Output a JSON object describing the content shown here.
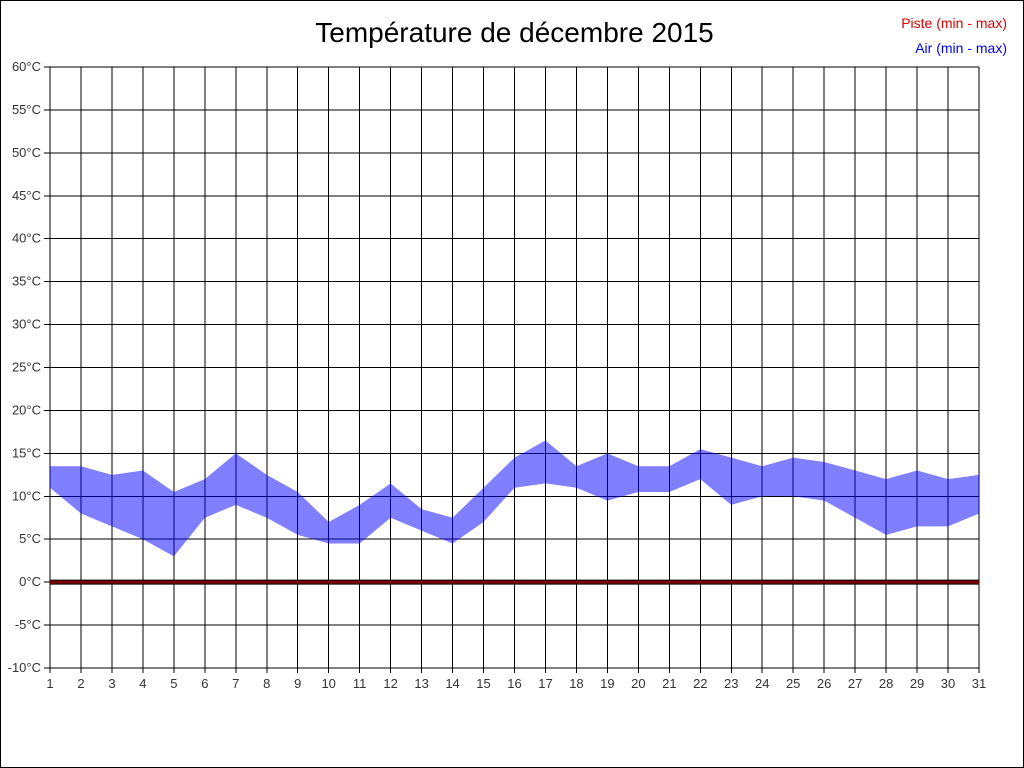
{
  "title": "Température de décembre 2015",
  "legend": {
    "piste_label": "Piste (min - max)",
    "air_label": "Air (min - max)",
    "piste_color": "#dd0000",
    "air_color": "#0000ee"
  },
  "colors": {
    "grid": "#000000",
    "tick_label": "#333333",
    "air_band_fill": "#0000ff",
    "air_band_opacity": 0.5,
    "piste_line": "#7c0000",
    "piste_line_edge": "#000000"
  },
  "chart_data": {
    "type": "area",
    "title": "Température de décembre 2015",
    "x": [
      1,
      2,
      3,
      4,
      5,
      6,
      7,
      8,
      9,
      10,
      11,
      12,
      13,
      14,
      15,
      16,
      17,
      18,
      19,
      20,
      21,
      22,
      23,
      24,
      25,
      26,
      27,
      28,
      29,
      30,
      31
    ],
    "ylim": [
      -10,
      60
    ],
    "ytick_step": 5,
    "yticks": [
      "60°C",
      "55°C",
      "50°C",
      "45°C",
      "40°C",
      "35°C",
      "30°C",
      "25°C",
      "20°C",
      "15°C",
      "10°C",
      "5°C",
      "0°C",
      "-5°C",
      "-10°C"
    ],
    "grid": true,
    "legend_position": "top-right",
    "series": [
      {
        "name": "Piste (min - max)",
        "color": "#7c0000",
        "min": [
          0,
          0,
          0,
          0,
          0,
          0,
          0,
          0,
          0,
          0,
          0,
          0,
          0,
          0,
          0,
          0,
          0,
          0,
          0,
          0,
          0,
          0,
          0,
          0,
          0,
          0,
          0,
          0,
          0,
          0,
          0
        ],
        "max": [
          0,
          0,
          0,
          0,
          0,
          0,
          0,
          0,
          0,
          0,
          0,
          0,
          0,
          0,
          0,
          0,
          0,
          0,
          0,
          0,
          0,
          0,
          0,
          0,
          0,
          0,
          0,
          0,
          0,
          0,
          0
        ]
      },
      {
        "name": "Air (min - max)",
        "color": "#0000ff",
        "opacity": 0.5,
        "min": [
          11,
          8,
          6.5,
          5,
          3,
          7.5,
          9,
          7.5,
          5.5,
          4.5,
          4.5,
          7.5,
          6,
          4.5,
          7,
          11,
          11.5,
          11,
          9.5,
          10.5,
          10.5,
          12,
          9,
          10,
          10,
          9.5,
          7.5,
          5.5,
          6.5,
          6.5,
          8
        ],
        "max": [
          13.5,
          13.5,
          12.5,
          13,
          10.5,
          12,
          15,
          12.5,
          10.5,
          7,
          9,
          11.5,
          8.5,
          7.5,
          11,
          14.5,
          16.5,
          13.5,
          15,
          13.5,
          13.5,
          15.5,
          14.5,
          13.5,
          14.5,
          14,
          13,
          12,
          13,
          12,
          12.5
        ]
      }
    ]
  }
}
